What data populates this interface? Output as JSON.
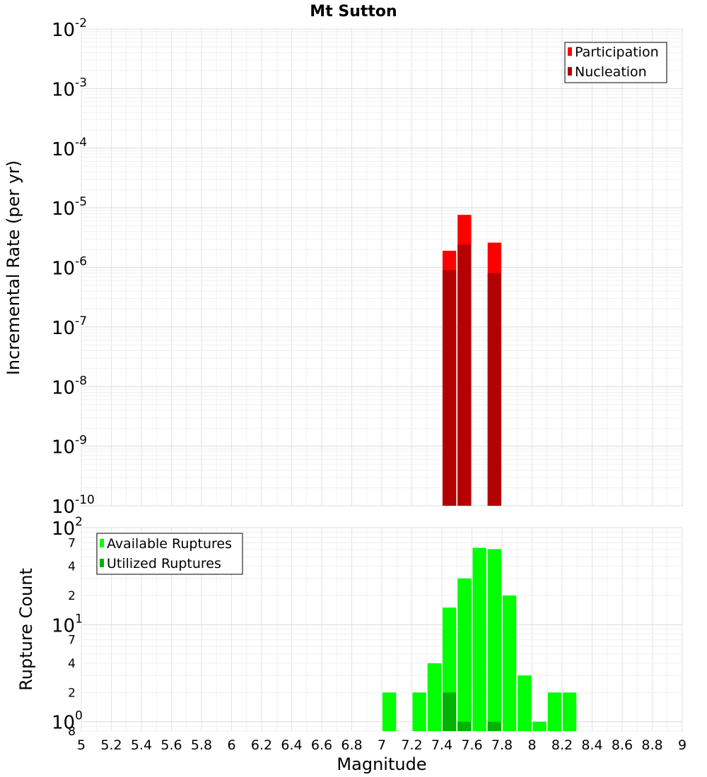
{
  "chart_data": [
    {
      "type": "bar",
      "title": "Mt Sutton",
      "ylabel": "Incremental Rate (per yr)",
      "xlabel": "",
      "yscale": "log",
      "ylim": [
        1e-10,
        0.01
      ],
      "xlim": [
        5,
        9
      ],
      "bin_width": 0.1,
      "y_ticks": [
        {
          "base": "10",
          "exp": "-10"
        },
        {
          "base": "10",
          "exp": "-9"
        },
        {
          "base": "10",
          "exp": "-8"
        },
        {
          "base": "10",
          "exp": "-7"
        },
        {
          "base": "10",
          "exp": "-6"
        },
        {
          "base": "10",
          "exp": "-5"
        },
        {
          "base": "10",
          "exp": "-4"
        },
        {
          "base": "10",
          "exp": "-3"
        },
        {
          "base": "10",
          "exp": "-2"
        }
      ],
      "legend": {
        "position": "top-right",
        "entries": [
          "Participation",
          "Nucleation"
        ]
      },
      "series": [
        {
          "name": "Participation",
          "color": "#ff0000",
          "x": [
            7.45,
            7.55,
            7.75
          ],
          "values": [
            1.9e-06,
            7.6e-06,
            2.6e-06
          ]
        },
        {
          "name": "Nucleation",
          "color": "#b30000",
          "x": [
            7.45,
            7.55,
            7.75
          ],
          "values": [
            9e-07,
            2.4e-06,
            8e-07
          ]
        }
      ]
    },
    {
      "type": "bar",
      "title": "",
      "ylabel": "Rupture Count",
      "xlabel": "Magnitude",
      "yscale": "log",
      "ylim": [
        0.8,
        100
      ],
      "xlim": [
        5,
        9
      ],
      "bin_width": 0.1,
      "x_ticks": [
        "5",
        "5.2",
        "5.4",
        "5.6",
        "5.8",
        "6",
        "6.2",
        "6.4",
        "6.6",
        "6.8",
        "7",
        "7.2",
        "7.4",
        "7.6",
        "7.8",
        "8",
        "8.2",
        "8.4",
        "8.6",
        "8.8",
        "9"
      ],
      "y_major_ticks": [
        {
          "value": 1,
          "base": "10",
          "exp": "0"
        },
        {
          "value": 10,
          "base": "10",
          "exp": "1"
        },
        {
          "value": 100,
          "base": "10",
          "exp": "2"
        }
      ],
      "y_minor_ticks": [
        {
          "value": 0.8,
          "label": "8"
        },
        {
          "value": 2,
          "label": "2"
        },
        {
          "value": 4,
          "label": "4"
        },
        {
          "value": 7,
          "label": "7"
        },
        {
          "value": 20,
          "label": "2"
        },
        {
          "value": 40,
          "label": "4"
        },
        {
          "value": 70,
          "label": "7"
        }
      ],
      "legend": {
        "position": "top-left",
        "entries": [
          "Available Ruptures",
          "Utilized Ruptures"
        ]
      },
      "series": [
        {
          "name": "Available Ruptures",
          "color": "#00ff00",
          "x": [
            7.05,
            7.25,
            7.35,
            7.45,
            7.55,
            7.65,
            7.75,
            7.85,
            7.95,
            8.05,
            8.15,
            8.25
          ],
          "values": [
            2,
            2,
            4,
            15,
            30,
            62,
            60,
            20,
            3,
            1,
            2,
            2
          ]
        },
        {
          "name": "Utilized Ruptures",
          "color": "#00b300",
          "x": [
            7.45,
            7.55,
            7.75
          ],
          "values": [
            2,
            1,
            1
          ]
        }
      ]
    }
  ]
}
